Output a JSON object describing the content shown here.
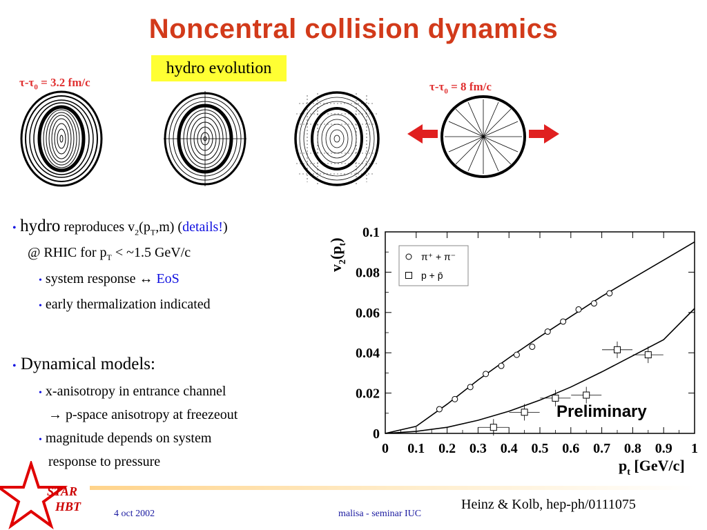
{
  "slide": {
    "title": "Noncentral collision dynamics",
    "hydro_label": "hydro evolution",
    "tau_left": "τ-τ",
    "tau_left_sub": "0",
    "tau_left_val": " = 3.2 fm/c",
    "tau_right": "τ-τ",
    "tau_right_sub": "0",
    "tau_right_val": " = 8 fm/c"
  },
  "bullets": {
    "b1_dot": "•",
    "b1_hydro": "hydro",
    "b1_rest": " reproduces v",
    "b1_sub2": "2",
    "b1_pt": "(p",
    "b1_subT": "T",
    "b1_m": ",m) (",
    "b1_details": "details!",
    "b1_close": ")",
    "b1_line2a": "@ RHIC for p",
    "b1_line2_sub": "T",
    "b1_line2b": " < ~1.5 GeV/c",
    "s1_dot": "•",
    "s1a": "system response ",
    "s1_arrow": "↔",
    "s1_eos": " EoS",
    "s2_dot": "•",
    "s2": "early thermalization indicated",
    "b2_dot": "•",
    "b2": "Dynamical models:",
    "s3_dot": "•",
    "s3": "x-anisotropy in entrance channel",
    "s3b": "→ p-space anisotropy at freezeout",
    "s4_dot": "•",
    "s4": "magnitude depends on system",
    "s4b": "response to pressure"
  },
  "footer": {
    "date": "4 oct 2002",
    "seminar": "malisa - seminar IUC",
    "citation": "Heinz & Kolb, hep-ph/0111075",
    "star_text_1": "STAR",
    "star_text_2": "HBT"
  },
  "chart_data": {
    "type": "scatter",
    "xlabel": "p",
    "xlabel_sub": "t",
    "xlabel_units": " [GeV/c]",
    "ylabel": "v",
    "ylabel_sub": "2",
    "ylabel_paren": "(p",
    "ylabel_paren_sub": "t",
    "ylabel_close": ")",
    "xlim": [
      0,
      1
    ],
    "ylim": [
      0,
      0.1
    ],
    "xticks": [
      "0",
      "0.1",
      "0.2",
      "0.3",
      "0.4",
      "0.5",
      "0.6",
      "0.7",
      "0.8",
      "0.9",
      "1"
    ],
    "yticks": [
      "0",
      "0.02",
      "0.04",
      "0.06",
      "0.08",
      "0.1"
    ],
    "annotation": "Preliminary",
    "legend": [
      "π⁺ + π⁻",
      "p + p̄"
    ],
    "series": [
      {
        "name": "π⁺ + π⁻",
        "marker": "circle",
        "x": [
          0.175,
          0.225,
          0.275,
          0.325,
          0.375,
          0.425,
          0.475,
          0.525,
          0.575,
          0.625,
          0.675,
          0.725
        ],
        "y": [
          0.012,
          0.017,
          0.023,
          0.0295,
          0.0335,
          0.039,
          0.043,
          0.0505,
          0.0555,
          0.0615,
          0.0645,
          0.0695
        ]
      },
      {
        "name": "p + p̄",
        "marker": "square",
        "x": [
          0.35,
          0.45,
          0.55,
          0.65,
          0.75,
          0.85
        ],
        "y": [
          0.003,
          0.0105,
          0.0175,
          0.019,
          0.0415,
          0.039
        ]
      }
    ],
    "curves": [
      {
        "name": "pion hydro",
        "x": [
          0,
          0.1,
          0.2,
          0.3,
          0.4,
          0.5,
          0.6,
          0.7,
          0.8,
          0.9,
          1.0
        ],
        "y": [
          0,
          0.0035,
          0.0145,
          0.0265,
          0.0375,
          0.048,
          0.058,
          0.068,
          0.077,
          0.086,
          0.095
        ]
      },
      {
        "name": "proton hydro",
        "x": [
          0,
          0.1,
          0.2,
          0.3,
          0.4,
          0.5,
          0.6,
          0.7,
          0.8,
          0.9,
          1.0
        ],
        "y": [
          0,
          0.001,
          0.003,
          0.0065,
          0.011,
          0.0165,
          0.023,
          0.0305,
          0.0385,
          0.0465,
          0.062
        ]
      }
    ]
  }
}
